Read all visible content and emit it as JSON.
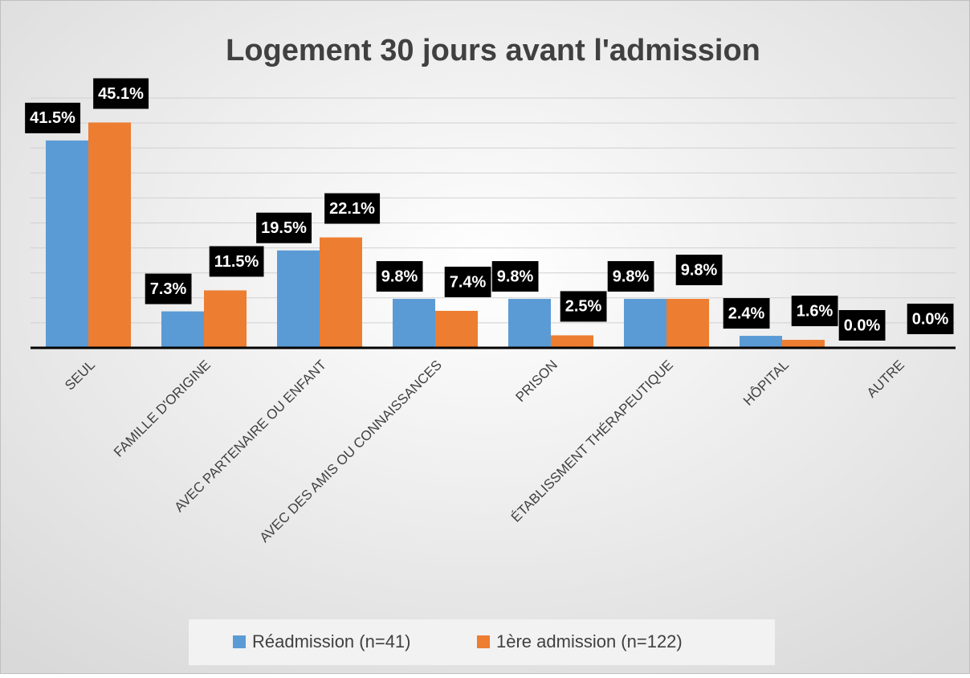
{
  "chart_data": {
    "type": "bar",
    "title": "Logement 30 jours avant l'admission",
    "categories": [
      "SEUL",
      "FAMILLE D'ORIGINE",
      "AVEC PARTENAIRE OU ENFANT",
      "AVEC DES AMIS OU CONNAISSANCES",
      "PRISON",
      "ÉTABLISSMENT THÉRAPEUTIQUE",
      "HÔPITAL",
      "AUTRE"
    ],
    "series": [
      {
        "name": "Réadmission (n=41)",
        "color": "#5b9bd5",
        "values": [
          41.5,
          7.3,
          19.5,
          9.8,
          9.8,
          9.8,
          2.4,
          0.0
        ],
        "value_labels": [
          "41.5%",
          "7.3%",
          "19.5%",
          "9.8%",
          "9.8%",
          "9.8%",
          "2.4%",
          "0.0%"
        ]
      },
      {
        "name": "1ère admission (n=122)",
        "color": "#ed7d31",
        "values": [
          45.1,
          11.5,
          22.1,
          7.4,
          2.5,
          9.8,
          1.6,
          0.0
        ],
        "value_labels": [
          "45.1%",
          "11.5%",
          "22.1%",
          "7.4%",
          "2.5%",
          "9.8%",
          "1.6%",
          "0.0%"
        ]
      }
    ],
    "ylim": [
      0,
      50
    ],
    "yticks": [
      0,
      5,
      10,
      15,
      20,
      25,
      30,
      35,
      40,
      45,
      50
    ],
    "grid": true,
    "legend": "bottom"
  }
}
